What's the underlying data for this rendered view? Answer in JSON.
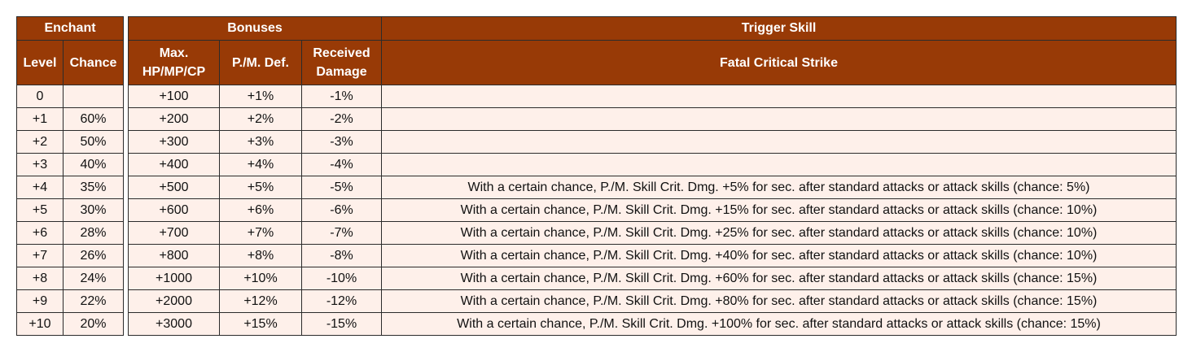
{
  "headers": {
    "enchant": "Enchant",
    "level": "Level",
    "chance": "Chance",
    "bonuses": "Bonuses",
    "max_stats": "Max. HP/MP/CP",
    "def": "P./M. Def.",
    "received_damage": "Received Damage",
    "trigger_skill": "Trigger Skill",
    "skill_name": "Fatal Critical Strike"
  },
  "rows": [
    {
      "level": "0",
      "chance": "",
      "max": "+100",
      "def": "+1%",
      "dmg": "-1%",
      "skill": ""
    },
    {
      "level": "+1",
      "chance": "60%",
      "max": "+200",
      "def": "+2%",
      "dmg": "-2%",
      "skill": ""
    },
    {
      "level": "+2",
      "chance": "50%",
      "max": "+300",
      "def": "+3%",
      "dmg": "-3%",
      "skill": ""
    },
    {
      "level": "+3",
      "chance": "40%",
      "max": "+400",
      "def": "+4%",
      "dmg": "-4%",
      "skill": ""
    },
    {
      "level": "+4",
      "chance": "35%",
      "max": "+500",
      "def": "+5%",
      "dmg": "-5%",
      "skill": "With a certain chance, P./M. Skill Crit. Dmg. +5% for sec. after standard attacks or attack skills (chance: 5%)"
    },
    {
      "level": "+5",
      "chance": "30%",
      "max": "+600",
      "def": "+6%",
      "dmg": "-6%",
      "skill": "With a certain chance, P./M. Skill Crit. Dmg. +15% for sec. after standard attacks or attack skills (chance: 10%)"
    },
    {
      "level": "+6",
      "chance": "28%",
      "max": "+700",
      "def": "+7%",
      "dmg": "-7%",
      "skill": "With a certain chance, P./M. Skill Crit. Dmg. +25% for sec. after standard attacks or attack skills (chance: 10%)"
    },
    {
      "level": "+7",
      "chance": "26%",
      "max": "+800",
      "def": "+8%",
      "dmg": "-8%",
      "skill": "With a certain chance, P./M. Skill Crit. Dmg. +40% for sec. after standard attacks or attack skills (chance: 10%)"
    },
    {
      "level": "+8",
      "chance": "24%",
      "max": "+1000",
      "def": "+10%",
      "dmg": "-10%",
      "skill": "With a certain chance, P./M. Skill Crit. Dmg. +60% for sec. after standard attacks or attack skills (chance: 15%)"
    },
    {
      "level": "+9",
      "chance": "22%",
      "max": "+2000",
      "def": "+12%",
      "dmg": "-12%",
      "skill": "With a certain chance, P./M. Skill Crit. Dmg. +80% for sec. after standard attacks or attack skills (chance: 15%)"
    },
    {
      "level": "+10",
      "chance": "20%",
      "max": "+3000",
      "def": "+15%",
      "dmg": "-15%",
      "skill": "With a certain chance, P./M. Skill Crit. Dmg. +100% for sec. after standard attacks or attack skills (chance: 15%)"
    }
  ],
  "colors": {
    "header_bg": "#983a06",
    "header_text": "#ffffff",
    "cell_bg": "#fef0ea",
    "border": "#2b2b2b"
  }
}
